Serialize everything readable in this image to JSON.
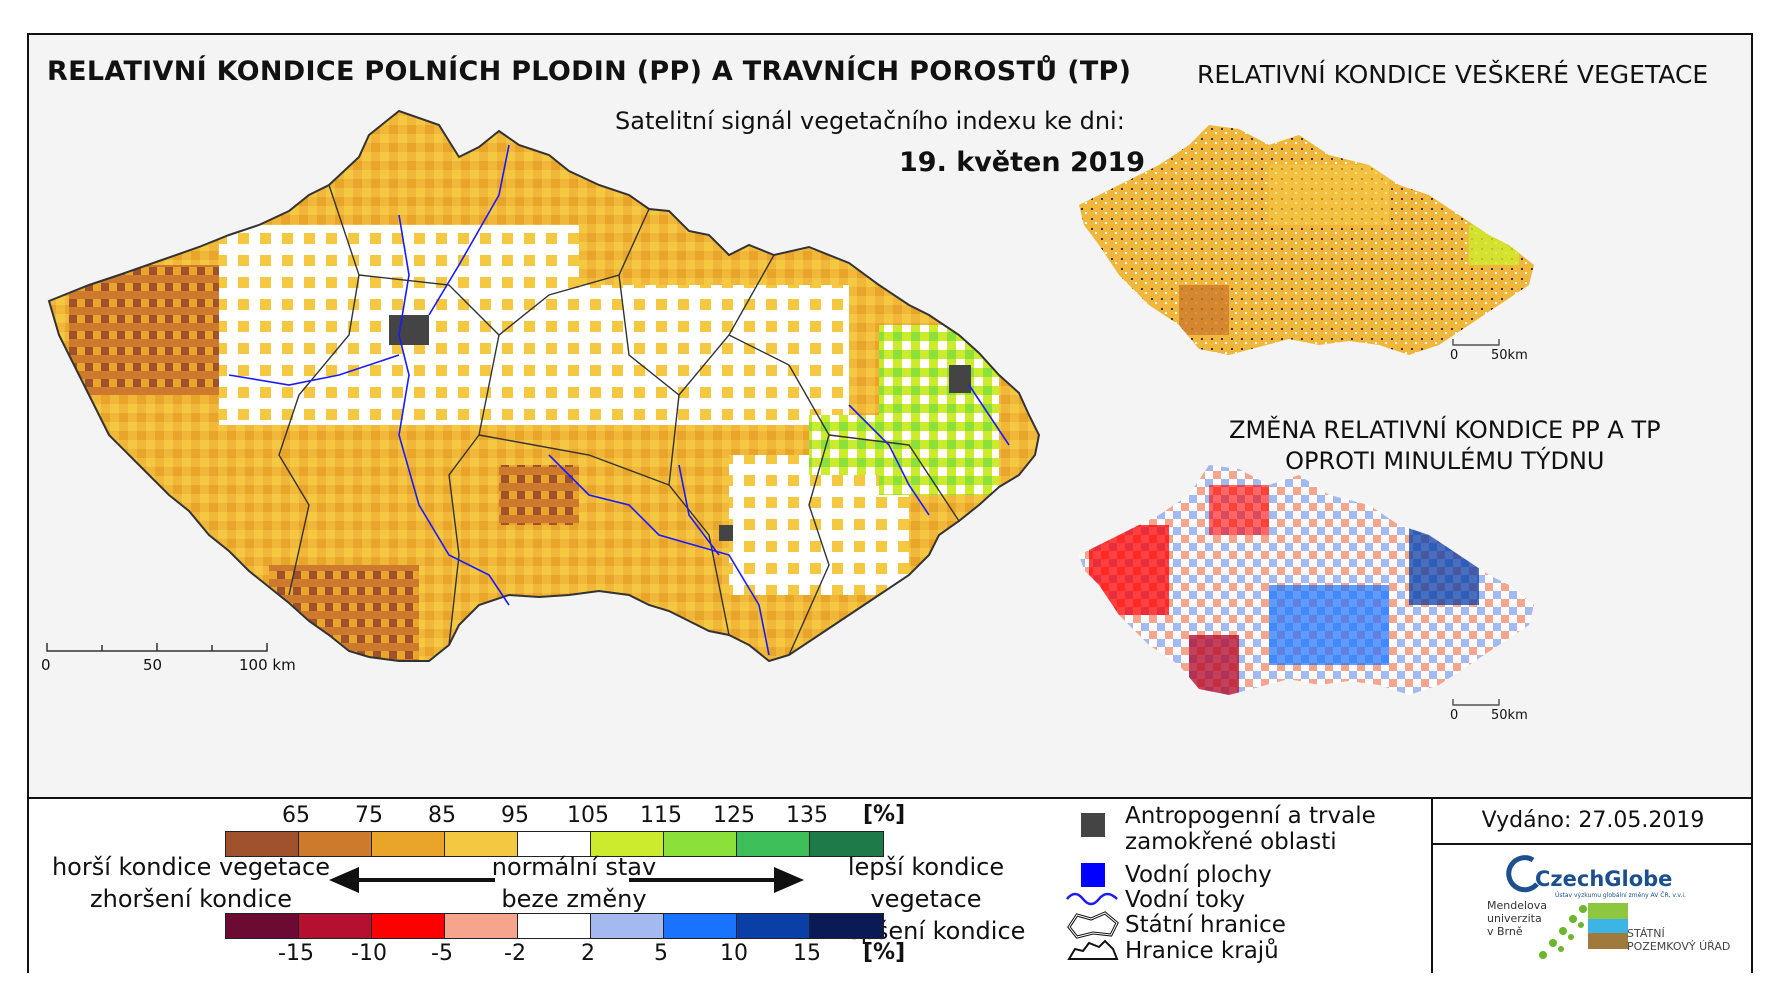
{
  "main_title": "RELATIVNÍ KONDICE POLNÍCH PLODIN (PP) A TRAVNÍCH POROSTŮ (TP)",
  "subtitle": "Satelitní signál vegetačního indexu ke dni:",
  "date": "19. květen 2019",
  "side_title": "RELATIVNÍ KONDICE VEŠKERÉ VEGETACE",
  "change_title_line1": "ZMĚNA RELATIVNÍ KONDICE PP A TP",
  "change_title_line2": "OPROTI MINULÉMU TÝDNU",
  "scale_main": {
    "labels": [
      "0",
      "50",
      "100 km"
    ]
  },
  "scale_small": {
    "labels": [
      "0",
      "50km"
    ]
  },
  "condition_scale": {
    "ticks": [
      "65",
      "75",
      "85",
      "95",
      "105",
      "115",
      "125",
      "135"
    ],
    "unit": "[%]",
    "colors": [
      "#a0522d",
      "#cd7a2c",
      "#e9a52a",
      "#f5c842",
      "#ffffff",
      "#cdeb2d",
      "#8ce03a",
      "#3fbf5a",
      "#1f7a4a"
    ]
  },
  "change_scale": {
    "ticks": [
      "-15",
      "-10",
      "-5",
      "-2",
      "2",
      "5",
      "10",
      "15"
    ],
    "unit": "[%]",
    "colors": [
      "#6b0a33",
      "#b5102f",
      "#ff0000",
      "#f7a48f",
      "#ffffff",
      "#a3b9f0",
      "#1a73ff",
      "#0b3fa8",
      "#0a1a55"
    ]
  },
  "legend_text": {
    "worse_1": "horší kondice vegetace",
    "worse_2": "zhoršení kondice",
    "normal_1": "normální stav",
    "normal_2": "beze změny",
    "better_1": "lepší kondice vegetace",
    "better_2": "zlepšení kondice"
  },
  "key": {
    "anthropogenic_1": "Antropogenní a trvale",
    "anthropogenic_2": "zamokřené oblasti",
    "water_bodies": "Vodní plochy",
    "rivers": "Vodní toky",
    "state_border": "Státní hranice",
    "region_border": "Hranice krajů"
  },
  "issued": "Vydáno: 27.05.2019",
  "logos": {
    "czechglobe": "CzechGlobe",
    "czechglobe_sub": "Ústav výzkumu globální změny AV ČR, v.v.i.",
    "mendel": "Mendelova\nuniverzita\nv Brně",
    "spu_1": "STÁTNÍ",
    "spu_2": "POZEMKOVÝ ÚŘAD"
  },
  "colors": {
    "anthropogenic": "#444444",
    "water": "#0000ff",
    "river": "#1a1aff"
  }
}
